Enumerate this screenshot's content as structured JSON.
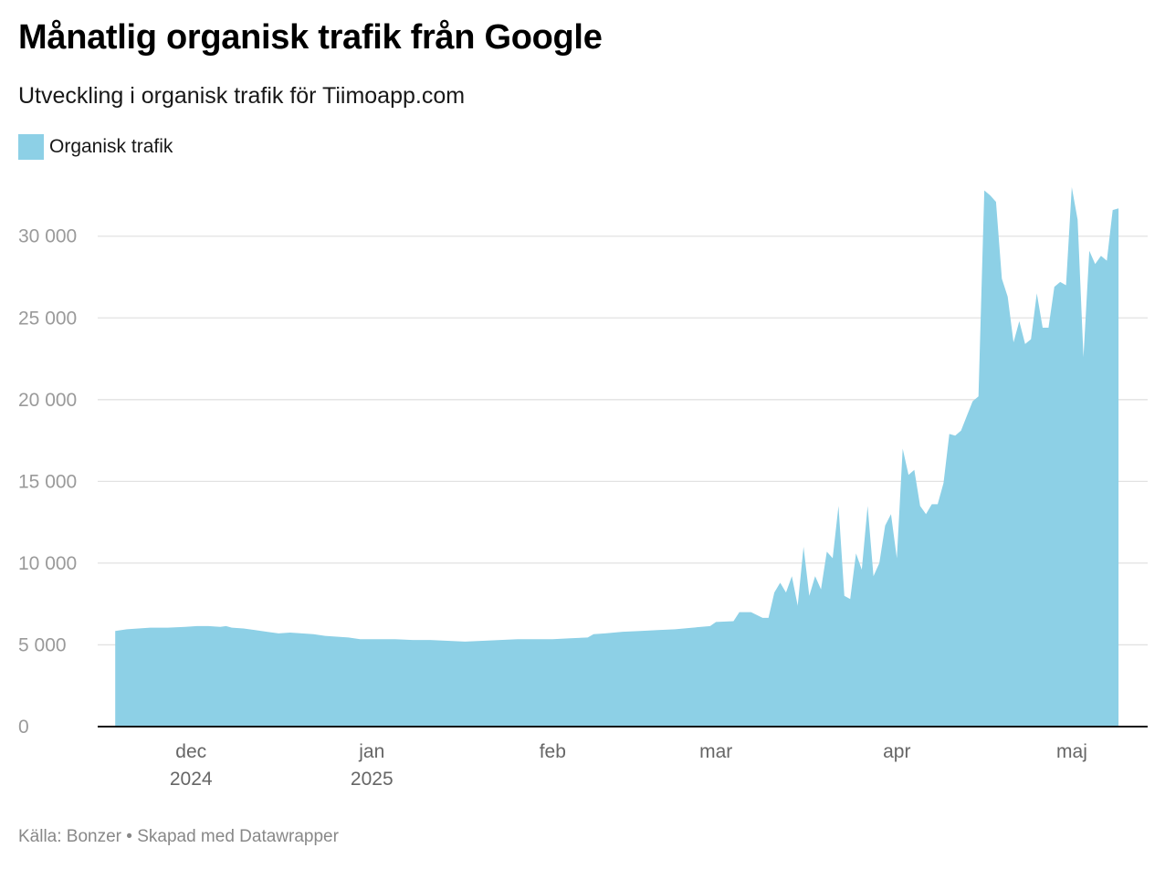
{
  "title": "Månatlig organisk trafik från Google",
  "subtitle": "Utveckling i organisk trafik för Tiimoapp.com",
  "footer": "Källa: Bonzer • Skapad med Datawrapper",
  "colors": {
    "area": "#8dd0e6",
    "grid": "#e2e2e2",
    "axis": "#111111"
  },
  "chart_data": {
    "type": "area",
    "legend": [
      {
        "name": "Organisk trafik",
        "color": "#8dd0e6"
      }
    ],
    "ylim": [
      0,
      33000
    ],
    "yticks": [
      0,
      5000,
      10000,
      15000,
      20000,
      25000,
      30000
    ],
    "ytick_labels": [
      "0",
      "5 000",
      "10 000",
      "15 000",
      "20 000",
      "25 000",
      "30 000"
    ],
    "xlim": [
      "2024-11-15",
      "2025-05-14"
    ],
    "xticks": [
      {
        "date": "2024-12-01",
        "label": "dec",
        "sublabel": "2024"
      },
      {
        "date": "2025-01-01",
        "label": "jan",
        "sublabel": "2025"
      },
      {
        "date": "2025-02-01",
        "label": "feb",
        "sublabel": ""
      },
      {
        "date": "2025-03-01",
        "label": "mar",
        "sublabel": ""
      },
      {
        "date": "2025-04-01",
        "label": "apr",
        "sublabel": ""
      },
      {
        "date": "2025-05-01",
        "label": "maj",
        "sublabel": ""
      }
    ],
    "series": [
      {
        "name": "Organisk trafik",
        "points": [
          [
            "2024-11-18",
            5850
          ],
          [
            "2024-11-20",
            5950
          ],
          [
            "2024-11-22",
            6000
          ],
          [
            "2024-11-24",
            6050
          ],
          [
            "2024-11-27",
            6050
          ],
          [
            "2024-11-30",
            6100
          ],
          [
            "2024-12-02",
            6150
          ],
          [
            "2024-12-04",
            6150
          ],
          [
            "2024-12-06",
            6100
          ],
          [
            "2024-12-07",
            6150
          ],
          [
            "2024-12-08",
            6050
          ],
          [
            "2024-12-10",
            6000
          ],
          [
            "2024-12-12",
            5900
          ],
          [
            "2024-12-14",
            5800
          ],
          [
            "2024-12-16",
            5700
          ],
          [
            "2024-12-18",
            5750
          ],
          [
            "2024-12-20",
            5700
          ],
          [
            "2024-12-22",
            5650
          ],
          [
            "2024-12-24",
            5550
          ],
          [
            "2024-12-26",
            5500
          ],
          [
            "2024-12-28",
            5450
          ],
          [
            "2024-12-30",
            5350
          ],
          [
            "2025-01-02",
            5350
          ],
          [
            "2025-01-05",
            5350
          ],
          [
            "2025-01-08",
            5300
          ],
          [
            "2025-01-11",
            5300
          ],
          [
            "2025-01-14",
            5250
          ],
          [
            "2025-01-17",
            5200
          ],
          [
            "2025-01-20",
            5250
          ],
          [
            "2025-01-23",
            5300
          ],
          [
            "2025-01-26",
            5350
          ],
          [
            "2025-01-29",
            5350
          ],
          [
            "2025-02-01",
            5350
          ],
          [
            "2025-02-04",
            5400
          ],
          [
            "2025-02-07",
            5450
          ],
          [
            "2025-02-08",
            5650
          ],
          [
            "2025-02-10",
            5700
          ],
          [
            "2025-02-13",
            5800
          ],
          [
            "2025-02-16",
            5850
          ],
          [
            "2025-02-19",
            5900
          ],
          [
            "2025-02-22",
            5950
          ],
          [
            "2025-02-25",
            6050
          ],
          [
            "2025-02-28",
            6150
          ],
          [
            "2025-03-01",
            6400
          ],
          [
            "2025-03-04",
            6450
          ],
          [
            "2025-03-05",
            7000
          ],
          [
            "2025-03-07",
            7000
          ],
          [
            "2025-03-09",
            6650
          ],
          [
            "2025-03-10",
            6650
          ],
          [
            "2025-03-11",
            8200
          ],
          [
            "2025-03-12",
            8800
          ],
          [
            "2025-03-13",
            8200
          ],
          [
            "2025-03-14",
            9200
          ],
          [
            "2025-03-15",
            7400
          ],
          [
            "2025-03-16",
            11000
          ],
          [
            "2025-03-17",
            8000
          ],
          [
            "2025-03-18",
            9200
          ],
          [
            "2025-03-19",
            8400
          ],
          [
            "2025-03-20",
            10700
          ],
          [
            "2025-03-21",
            10300
          ],
          [
            "2025-03-22",
            13500
          ],
          [
            "2025-03-23",
            8000
          ],
          [
            "2025-03-24",
            7800
          ],
          [
            "2025-03-25",
            10600
          ],
          [
            "2025-03-26",
            9600
          ],
          [
            "2025-03-27",
            13500
          ],
          [
            "2025-03-28",
            9200
          ],
          [
            "2025-03-29",
            10000
          ],
          [
            "2025-03-30",
            12300
          ],
          [
            "2025-03-31",
            13000
          ],
          [
            "2025-04-01",
            10300
          ],
          [
            "2025-04-02",
            17000
          ],
          [
            "2025-04-03",
            15400
          ],
          [
            "2025-04-04",
            15700
          ],
          [
            "2025-04-05",
            13500
          ],
          [
            "2025-04-06",
            13000
          ],
          [
            "2025-04-07",
            13600
          ],
          [
            "2025-04-08",
            13600
          ],
          [
            "2025-04-09",
            14900
          ],
          [
            "2025-04-10",
            17900
          ],
          [
            "2025-04-11",
            17800
          ],
          [
            "2025-04-12",
            18100
          ],
          [
            "2025-04-13",
            19000
          ],
          [
            "2025-04-14",
            19900
          ],
          [
            "2025-04-15",
            20200
          ],
          [
            "2025-04-16",
            32800
          ],
          [
            "2025-04-17",
            32500
          ],
          [
            "2025-04-18",
            32100
          ],
          [
            "2025-04-19",
            27400
          ],
          [
            "2025-04-20",
            26300
          ],
          [
            "2025-04-21",
            23500
          ],
          [
            "2025-04-22",
            24800
          ],
          [
            "2025-04-23",
            23400
          ],
          [
            "2025-04-24",
            23700
          ],
          [
            "2025-04-25",
            26500
          ],
          [
            "2025-04-26",
            24400
          ],
          [
            "2025-04-27",
            24400
          ],
          [
            "2025-04-28",
            26900
          ],
          [
            "2025-04-29",
            27200
          ],
          [
            "2025-04-30",
            27000
          ],
          [
            "2025-05-01",
            33000
          ],
          [
            "2025-05-02",
            31000
          ],
          [
            "2025-05-03",
            22600
          ],
          [
            "2025-05-04",
            29100
          ],
          [
            "2025-05-05",
            28300
          ],
          [
            "2025-05-06",
            28800
          ],
          [
            "2025-05-07",
            28500
          ],
          [
            "2025-05-08",
            31600
          ],
          [
            "2025-05-09",
            31700
          ]
        ]
      }
    ]
  }
}
